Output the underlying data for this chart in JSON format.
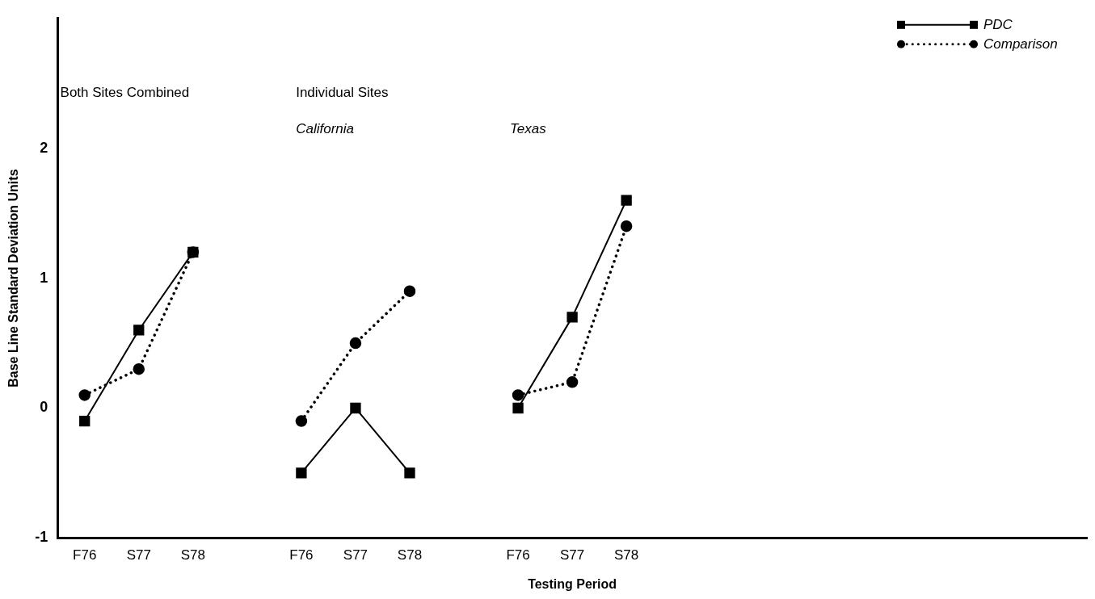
{
  "chart_data": {
    "type": "line",
    "xlabel": "Testing Period",
    "ylabel": "Base Line Standard Deviation Units",
    "annotations": [
      "Both Sites Combined",
      "Individual Sites",
      "California",
      "Texas"
    ],
    "categories": [
      "F76",
      "S77",
      "S78",
      null,
      "F76",
      "S77",
      "S78",
      null,
      "F76",
      "S77",
      "S78",
      null,
      null,
      null,
      null,
      null,
      null,
      null,
      null
    ],
    "series": [
      {
        "name": "PDC",
        "color": "#000000",
        "marker": "square",
        "line_style": "solid",
        "values": [
          -0.1,
          0.6,
          1.2,
          null,
          -0.5,
          0,
          -0.5,
          null,
          0,
          0.7,
          1.6,
          null,
          null,
          null,
          null,
          null,
          null,
          null,
          null
        ]
      },
      {
        "name": "Comparison",
        "color": "#000000",
        "marker": "circle",
        "line_style": "dotted",
        "values": [
          0.1,
          0.3,
          1.2,
          null,
          -0.1,
          0.5,
          0.9,
          null,
          0.1,
          0.2,
          1.4,
          null,
          null,
          null,
          null,
          null,
          null,
          null,
          null
        ]
      }
    ],
    "ylim": [
      -1,
      3
    ],
    "yticks": [
      -1,
      0,
      1,
      2
    ],
    "grid": false,
    "legend": "top right"
  }
}
